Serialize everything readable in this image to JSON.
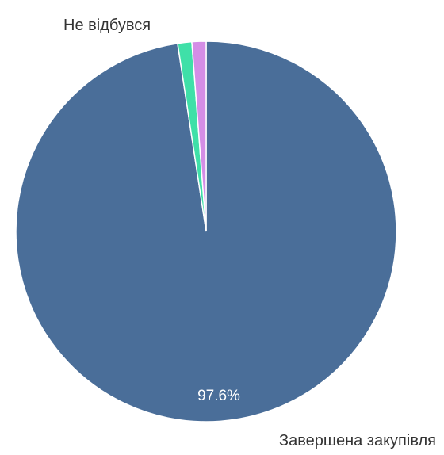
{
  "chart_data": {
    "type": "pie",
    "categories": [
      "Завершена закупівля",
      "Не відбувся",
      ""
    ],
    "values": [
      97.6,
      1.2,
      1.2
    ],
    "colors": [
      "#4a6e99",
      "#3fe0a8",
      "#d48ee6"
    ],
    "labels": [
      "Завершена закупівля",
      "Не відбувся",
      ""
    ],
    "percent_labels": [
      "97.6%",
      "",
      ""
    ],
    "start_angle_deg": 0,
    "direction": "clockwise",
    "legend": "none"
  }
}
